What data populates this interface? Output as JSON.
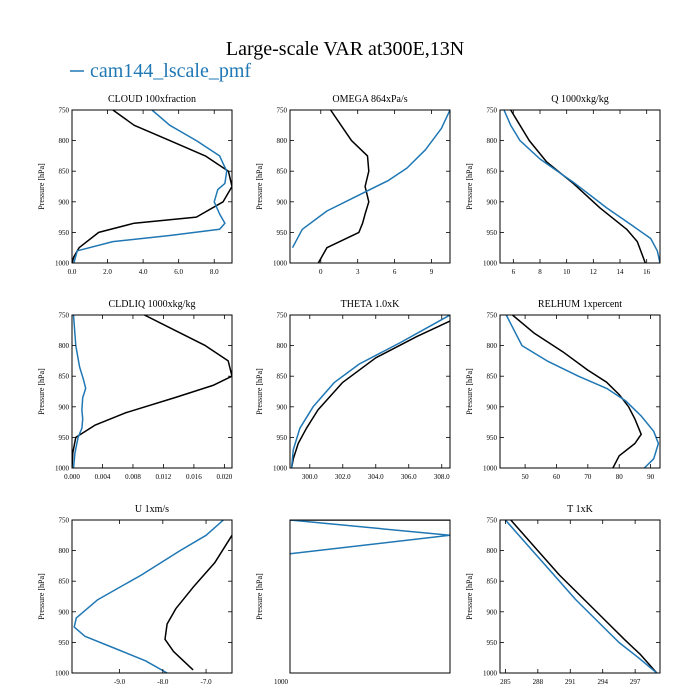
{
  "figure": {
    "title": "Large-scale VAR at300E,13N",
    "legend_label": "cam144_lscale_pmf",
    "legend_color": "#1f77b4"
  },
  "colors": {
    "black_series": "#000000",
    "blue_series": "#1f77b4"
  },
  "chart_data": [
    {
      "type": "line",
      "title": "CLOUD  100xfraction",
      "ylabel": "Pressure [hPa]",
      "xlim": [
        0,
        9
      ],
      "ylim": [
        750,
        1000
      ],
      "y_inverted": true,
      "xticks": [
        0,
        2,
        4,
        6,
        8
      ],
      "xtick_labels": [
        "0.0",
        "2.0",
        "4.0",
        "6.0",
        "8.0"
      ],
      "yticks": [
        750,
        800,
        850,
        900,
        950,
        1000
      ],
      "ytick_labels": [
        "750",
        "800",
        "850",
        "900",
        "950",
        "1000"
      ],
      "series": [
        {
          "color": "#000000",
          "x": [
            2.3,
            3.5,
            5.5,
            7.5,
            8.8,
            9.0,
            8.5,
            7.0,
            3.5,
            1.5,
            0.4,
            0.1,
            0.0
          ],
          "y": [
            750,
            775,
            800,
            825,
            850,
            875,
            900,
            925,
            935,
            950,
            975,
            990,
            1000
          ]
        },
        {
          "color": "#1f77b4",
          "x": [
            4.5,
            5.5,
            7.0,
            8.3,
            8.7,
            8.6,
            8.2,
            8.0,
            8.3,
            8.6,
            8.3,
            5.5,
            2.3,
            0.3,
            0.1
          ],
          "y": [
            750,
            775,
            800,
            825,
            850,
            870,
            880,
            900,
            920,
            935,
            945,
            955,
            965,
            980,
            1000
          ]
        }
      ]
    },
    {
      "type": "line",
      "title": "OMEGA  864xPa/s",
      "ylabel": "Pressure [hPa]",
      "xlim": [
        -2.5,
        10.5
      ],
      "ylim": [
        750,
        1000
      ],
      "y_inverted": true,
      "xticks": [
        0,
        3,
        6,
        9
      ],
      "xtick_labels": [
        "0",
        "3",
        "6",
        "9"
      ],
      "yticks": [
        750,
        800,
        850,
        900,
        950,
        1000
      ],
      "ytick_labels": [
        "750",
        "800",
        "850",
        "900",
        "950",
        "1000"
      ],
      "series": [
        {
          "color": "#000000",
          "x": [
            0.8,
            2.5,
            3.8,
            3.9,
            3.6,
            3.9,
            3.6,
            3.4,
            3.1,
            0.5,
            -0.2
          ],
          "y": [
            750,
            800,
            825,
            850,
            875,
            900,
            920,
            935,
            950,
            975,
            1000
          ]
        },
        {
          "color": "#1f77b4",
          "x": [
            10.5,
            9.8,
            8.5,
            7.0,
            5.5,
            3.0,
            0.5,
            -1.5,
            -2.3
          ],
          "y": [
            750,
            780,
            815,
            845,
            865,
            890,
            915,
            945,
            975
          ]
        }
      ]
    },
    {
      "type": "line",
      "title": "Q  1000xkg/kg",
      "ylabel": "Pressure [hPa]",
      "xlim": [
        5,
        17
      ],
      "ylim": [
        750,
        1000
      ],
      "y_inverted": true,
      "xticks": [
        6,
        8,
        10,
        12,
        14,
        16
      ],
      "xtick_labels": [
        "6",
        "8",
        "10",
        "12",
        "14",
        "16"
      ],
      "yticks": [
        750,
        800,
        850,
        900,
        950,
        1000
      ],
      "ytick_labels": [
        "750",
        "800",
        "850",
        "900",
        "950",
        "1000"
      ],
      "series": [
        {
          "color": "#000000",
          "x": [
            5.8,
            6.5,
            7.2,
            8.5,
            10.5,
            12.5,
            14.5,
            15.3,
            15.9
          ],
          "y": [
            750,
            775,
            800,
            835,
            870,
            910,
            945,
            965,
            1000
          ]
        },
        {
          "color": "#1f77b4",
          "x": [
            5.3,
            5.8,
            6.5,
            8.0,
            10.5,
            13.0,
            15.0,
            16.3,
            16.8,
            17.0
          ],
          "y": [
            750,
            775,
            800,
            830,
            868,
            910,
            940,
            960,
            980,
            1000
          ]
        }
      ]
    },
    {
      "type": "line",
      "title": "CLDLIQ  1000xkg/kg",
      "ylabel": "Pressure [hPa]",
      "xlim": [
        0,
        0.021
      ],
      "ylim": [
        750,
        1000
      ],
      "y_inverted": true,
      "xticks": [
        0,
        0.004,
        0.008,
        0.012,
        0.016,
        0.02
      ],
      "xtick_labels": [
        "0.000",
        "0.004",
        "0.008",
        "0.012",
        "0.016",
        "0.020"
      ],
      "yticks": [
        750,
        800,
        850,
        900,
        950,
        1000
      ],
      "ytick_labels": [
        "750",
        "800",
        "850",
        "900",
        "950",
        "1000"
      ],
      "series": [
        {
          "color": "#000000",
          "x": [
            0.0095,
            0.0135,
            0.0175,
            0.0205,
            0.021,
            0.0185,
            0.0135,
            0.007,
            0.003,
            0.0005,
            0.0001,
            0.0
          ],
          "y": [
            750,
            775,
            800,
            825,
            850,
            865,
            885,
            910,
            930,
            950,
            975,
            1000
          ]
        },
        {
          "color": "#1f77b4",
          "x": [
            0.0002,
            0.0005,
            0.001,
            0.0015,
            0.0018,
            0.0014,
            0.0013,
            0.0014,
            0.0013,
            0.0008,
            0.0004,
            0.0002
          ],
          "y": [
            750,
            800,
            835,
            855,
            870,
            885,
            905,
            920,
            935,
            950,
            975,
            1000
          ]
        }
      ]
    },
    {
      "type": "line",
      "title": "THETA  1.0xK",
      "ylabel": "Pressure [hPa]",
      "xlim": [
        298.8,
        308.5
      ],
      "ylim": [
        750,
        1000
      ],
      "y_inverted": true,
      "xticks": [
        300,
        302,
        304,
        306,
        308
      ],
      "xtick_labels": [
        "300.0",
        "302.0",
        "304.0",
        "306.0",
        "308.0"
      ],
      "yticks": [
        750,
        800,
        850,
        900,
        950,
        1000
      ],
      "ytick_labels": [
        "750",
        "800",
        "850",
        "900",
        "950",
        "1000"
      ],
      "series": [
        {
          "color": "#000000",
          "x": [
            308.5,
            306.5,
            304.0,
            302.0,
            300.5,
            299.8,
            299.3,
            299.0,
            298.9
          ],
          "y": [
            760,
            785,
            820,
            860,
            905,
            935,
            960,
            985,
            1000
          ]
        },
        {
          "color": "#1f77b4",
          "x": [
            308.5,
            307.5,
            305.5,
            303.0,
            301.5,
            300.2,
            299.4,
            299.0,
            298.9
          ],
          "y": [
            750,
            765,
            795,
            830,
            860,
            900,
            935,
            970,
            1000
          ]
        }
      ]
    },
    {
      "type": "line",
      "title": "RELHUM  1xpercent",
      "ylabel": "Pressure [hPa]",
      "xlim": [
        42,
        93
      ],
      "ylim": [
        750,
        1000
      ],
      "y_inverted": true,
      "xticks": [
        50,
        60,
        70,
        80,
        90
      ],
      "xtick_labels": [
        "50",
        "60",
        "70",
        "80",
        "90"
      ],
      "yticks": [
        750,
        800,
        850,
        900,
        950,
        1000
      ],
      "ytick_labels": [
        "750",
        "800",
        "850",
        "900",
        "950",
        "1000"
      ],
      "series": [
        {
          "color": "#000000",
          "x": [
            46.0,
            53.0,
            62.0,
            70.0,
            76.0,
            80.0,
            83.0,
            85.0,
            87.0,
            85.0,
            80.0,
            78.0
          ],
          "y": [
            750,
            780,
            810,
            840,
            860,
            880,
            900,
            920,
            945,
            960,
            980,
            1000
          ]
        },
        {
          "color": "#1f77b4",
          "x": [
            44.0,
            46.0,
            49.0,
            57.0,
            67.0,
            76.0,
            82.0,
            87.0,
            91.0,
            92.5,
            91.0,
            88.0
          ],
          "y": [
            750,
            770,
            800,
            825,
            850,
            870,
            890,
            915,
            940,
            960,
            985,
            1000
          ]
        }
      ]
    },
    {
      "type": "line",
      "title": "U  1xm/s",
      "ylabel": "Pressure [hPa]",
      "xlim": [
        -10.1,
        -6.4
      ],
      "ylim": [
        750,
        1000
      ],
      "y_inverted": true,
      "xticks": [
        -9,
        -8,
        -7
      ],
      "xtick_labels": [
        "-9.0",
        "-8.0",
        "-7.0"
      ],
      "yticks": [
        750,
        800,
        850,
        900,
        950,
        1000
      ],
      "ytick_labels": [
        "750",
        "800",
        "850",
        "900",
        "950",
        "1000"
      ],
      "series": [
        {
          "color": "#000000",
          "x": [
            -6.4,
            -6.8,
            -7.3,
            -7.7,
            -7.9,
            -7.95,
            -7.75,
            -7.3
          ],
          "y": [
            775,
            820,
            860,
            895,
            920,
            945,
            965,
            995
          ]
        },
        {
          "color": "#1f77b4",
          "x": [
            -6.6,
            -7.0,
            -7.6,
            -8.5,
            -9.5,
            -10.0,
            -10.05,
            -9.8,
            -9.1,
            -8.4,
            -7.9
          ],
          "y": [
            750,
            775,
            800,
            840,
            880,
            910,
            925,
            940,
            960,
            980,
            1000
          ]
        }
      ]
    },
    {
      "type": "line",
      "title": "",
      "ylabel": "Pressure [hPa]",
      "xlim": [
        0,
        1
      ],
      "ylim": [
        750,
        1000
      ],
      "y_inverted": true,
      "xticks": [],
      "xtick_labels": [],
      "yticks": [],
      "ytick_labels": [],
      "series": [
        {
          "color": "#000000",
          "x": [
            0,
            1
          ],
          "y": [
            750,
            750
          ]
        },
        {
          "color": "#1f77b4",
          "x": [
            0,
            1,
            0
          ],
          "y": [
            750,
            775,
            805
          ]
        }
      ],
      "overflow_label": "1000"
    },
    {
      "type": "line",
      "title": "T  1xK",
      "ylabel": "Pressure [hPa]",
      "xlim": [
        284.5,
        299.3
      ],
      "ylim": [
        750,
        1000
      ],
      "y_inverted": true,
      "xticks": [
        285,
        288,
        291,
        294,
        297
      ],
      "xtick_labels": [
        "285",
        "288",
        "291",
        "294",
        "297"
      ],
      "yticks": [
        750,
        800,
        850,
        900,
        950,
        1000
      ],
      "ytick_labels": [
        "750",
        "800",
        "850",
        "900",
        "950",
        "1000"
      ],
      "series": [
        {
          "color": "#000000",
          "x": [
            285.5,
            286.5,
            288.0,
            290.0,
            292.0,
            294.0,
            296.0,
            297.5,
            299.0
          ],
          "y": [
            750,
            770,
            800,
            840,
            875,
            910,
            945,
            970,
            1000
          ]
        },
        {
          "color": "#1f77b4",
          "x": [
            285.0,
            286.0,
            287.5,
            289.5,
            291.5,
            293.5,
            295.5,
            297.3,
            299.0
          ],
          "y": [
            750,
            770,
            800,
            840,
            880,
            915,
            950,
            975,
            1000
          ]
        }
      ]
    }
  ]
}
